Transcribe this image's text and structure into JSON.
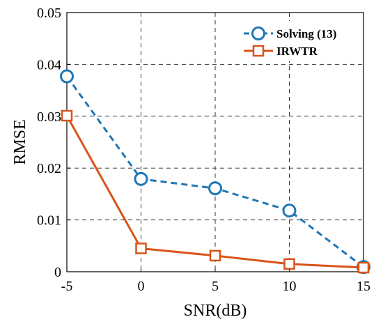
{
  "chart_data": {
    "type": "line",
    "xlabel": "SNR(dB)",
    "ylabel": "RMSE",
    "x": [
      -5,
      0,
      5,
      10,
      15
    ],
    "xlim": [
      -5,
      15
    ],
    "ylim": [
      0,
      0.05
    ],
    "xticks": [
      "-5",
      "0",
      "5",
      "10",
      "15"
    ],
    "yticks": [
      "0",
      "0.01",
      "0.02",
      "0.03",
      "0.04",
      "0.05"
    ],
    "grid": true,
    "legend_position": "top-right",
    "series": [
      {
        "name": "Solving (13)",
        "values": [
          0.0377,
          0.0179,
          0.0161,
          0.0118,
          0.0009
        ],
        "color": "#1f77b4",
        "line_style": "dashed",
        "marker": "circle"
      },
      {
        "name": "IRWTR",
        "values": [
          0.0301,
          0.0045,
          0.0031,
          0.0015,
          0.0008
        ],
        "color": "#d95319",
        "line_style": "solid",
        "marker": "square"
      }
    ]
  }
}
